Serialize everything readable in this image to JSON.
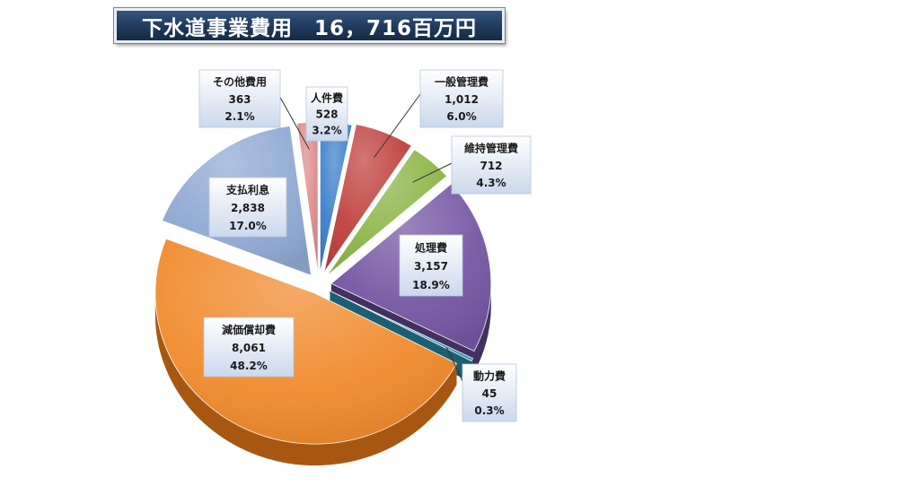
{
  "chart_data": {
    "type": "pie",
    "title": "下水道事業費用　16，716百万円",
    "slices": [
      {
        "name": "人件費",
        "value": "528",
        "percent": "3.2%",
        "share": 3.2,
        "color": "#3c7fcc",
        "side": "#27578f"
      },
      {
        "name": "一般管理費",
        "value": "1,012",
        "percent": "6.0%",
        "share": 6.0,
        "color": "#c0403d",
        "side": "#7e2624"
      },
      {
        "name": "維持管理費",
        "value": "712",
        "percent": "4.3%",
        "share": 4.3,
        "color": "#8cb646",
        "side": "#5b7a2a"
      },
      {
        "name": "処理費",
        "value": "3,157",
        "percent": "18.9%",
        "share": 18.9,
        "color": "#7556a3",
        "side": "#44305f"
      },
      {
        "name": "動力費",
        "value": "45",
        "percent": "0.3%",
        "share": 0.3,
        "color": "#36a4c0",
        "side": "#1b5f70"
      },
      {
        "name": "減価償却費",
        "value": "8,061",
        "percent": "48.2%",
        "share": 48.2,
        "color": "#f08a2c",
        "side": "#a85711"
      },
      {
        "name": "支払利息",
        "value": "2,838",
        "percent": "17.0%",
        "share": 17.0,
        "color": "#8fa9d3",
        "side": "#2f4058"
      },
      {
        "name": "その他費用",
        "value": "363",
        "percent": "2.1%",
        "share": 2.1,
        "color": "#dd8b8b",
        "side": "#9a5555"
      }
    ],
    "legend": "none",
    "labels": "callout boxes with name, value (百万円) and percent"
  }
}
